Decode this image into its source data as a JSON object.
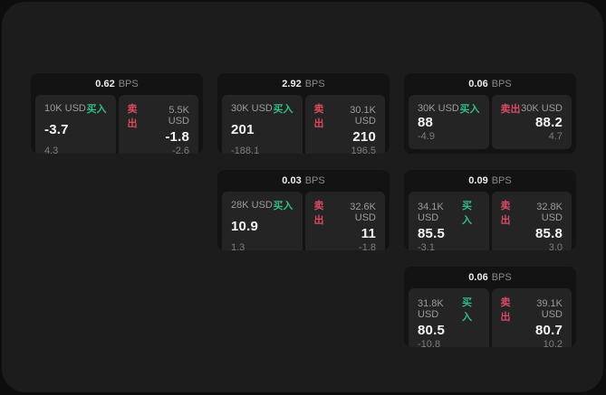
{
  "page": {
    "background": "#0d0d0d",
    "panel_background": "#1c1c1c",
    "card_background": "#131313",
    "tile_background": "#242424"
  },
  "labels": {
    "bps": "BPS",
    "buy": "买入",
    "sell": "卖出"
  },
  "colors": {
    "buy": "#2ebd85",
    "sell": "#d84a62"
  },
  "cards": [
    {
      "col": 1,
      "row": 1,
      "bps": "0.62",
      "buy": {
        "amount": "10K USD",
        "value": "-3.7",
        "sub": "4.3"
      },
      "sell": {
        "amount": "5.5K USD",
        "value": "-1.8",
        "sub": "-2.6"
      }
    },
    {
      "col": 2,
      "row": 1,
      "bps": "2.92",
      "buy": {
        "amount": "30K USD",
        "value": "201",
        "sub": "-188.1"
      },
      "sell": {
        "amount": "30.1K USD",
        "value": "210",
        "sub": "196.5"
      }
    },
    {
      "col": 3,
      "row": 1,
      "bps": "0.06",
      "buy": {
        "amount": "30K USD",
        "value": "88",
        "sub": "-4.9"
      },
      "sell": {
        "amount": "30K USD",
        "value": "88.2",
        "sub": "4.7"
      }
    },
    {
      "col": 2,
      "row": 2,
      "bps": "0.03",
      "buy": {
        "amount": "28K USD",
        "value": "10.9",
        "sub": "1.3"
      },
      "sell": {
        "amount": "32.6K USD",
        "value": "11",
        "sub": "-1.8"
      }
    },
    {
      "col": 3,
      "row": 2,
      "bps": "0.09",
      "buy": {
        "amount": "34.1K USD",
        "value": "85.5",
        "sub": "-3.1"
      },
      "sell": {
        "amount": "32.8K USD",
        "value": "85.8",
        "sub": "3.0"
      }
    },
    {
      "col": 3,
      "row": 3,
      "bps": "0.06",
      "buy": {
        "amount": "31.8K USD",
        "value": "80.5",
        "sub": "-10.8"
      },
      "sell": {
        "amount": "39.1K USD",
        "value": "80.7",
        "sub": "10.2"
      }
    }
  ]
}
